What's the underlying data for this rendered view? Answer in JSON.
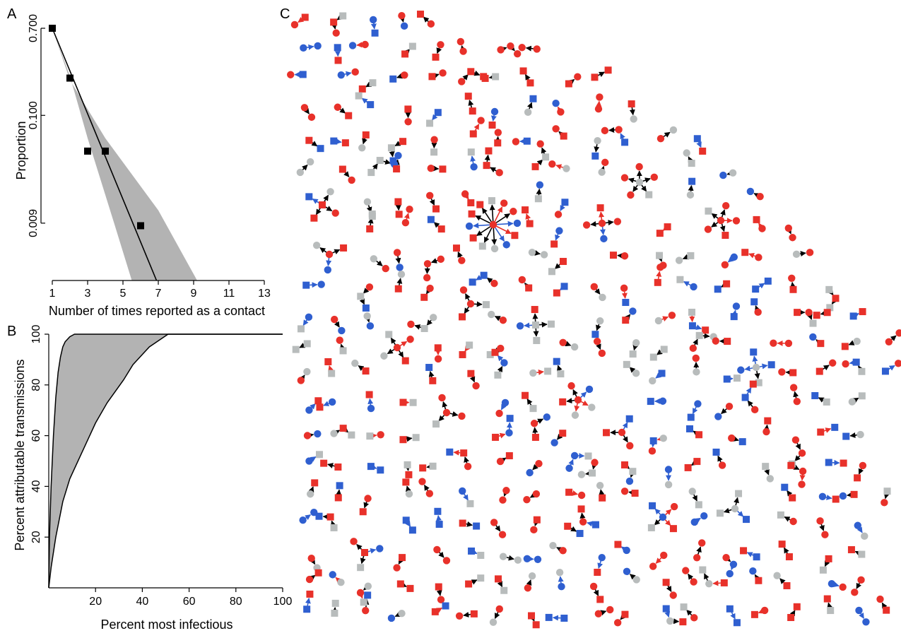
{
  "panels": {
    "a": "A",
    "b": "B",
    "c": "C"
  },
  "chart_data": [
    {
      "panel": "A",
      "type": "scatter",
      "xlabel": "Number of times reported as a contact",
      "ylabel": "Proportion",
      "x_ticks": [
        1,
        3,
        5,
        7,
        9,
        11,
        13
      ],
      "y_ticks": [
        0.009,
        0.1,
        0.7
      ],
      "y_tick_labels": [
        "0.009",
        "0.100",
        "0.700"
      ],
      "y_scale": "log",
      "xlim": [
        1,
        13
      ],
      "ylim": [
        0.0025,
        0.7
      ],
      "points": [
        {
          "x": 1,
          "y": 0.7
        },
        {
          "x": 2,
          "y": 0.23
        },
        {
          "x": 3,
          "y": 0.045
        },
        {
          "x": 4,
          "y": 0.045
        },
        {
          "x": 6,
          "y": 0.0085
        }
      ],
      "fit_line": [
        {
          "x": 1,
          "y": 0.7
        },
        {
          "x": 6.9,
          "y": 0.0025
        }
      ],
      "band_upper": [
        {
          "x": 1,
          "y": 0.7
        },
        {
          "x": 2,
          "y": 0.22
        },
        {
          "x": 4,
          "y": 0.06
        },
        {
          "x": 7,
          "y": 0.012
        },
        {
          "x": 9.2,
          "y": 0.0025
        }
      ],
      "band_lower": [
        {
          "x": 1,
          "y": 0.7
        },
        {
          "x": 2,
          "y": 0.24
        },
        {
          "x": 3,
          "y": 0.06
        },
        {
          "x": 4.5,
          "y": 0.009
        },
        {
          "x": 5.5,
          "y": 0.0025
        }
      ],
      "colors": {
        "points": "#000000",
        "band": "#b3b3b3",
        "line": "#000000"
      }
    },
    {
      "panel": "B",
      "type": "area",
      "xlabel": "Percent most infectious",
      "ylabel": "Percent attributable transmissions",
      "x_ticks": [
        20,
        40,
        60,
        80,
        100
      ],
      "y_ticks": [
        20,
        40,
        60,
        80,
        100
      ],
      "xlim": [
        0,
        100
      ],
      "ylim": [
        0,
        100
      ],
      "upper_curve": [
        [
          0,
          0
        ],
        [
          0.3,
          20
        ],
        [
          1,
          40
        ],
        [
          2,
          60
        ],
        [
          3,
          75
        ],
        [
          4,
          85
        ],
        [
          5,
          91
        ],
        [
          6,
          95
        ],
        [
          7,
          97
        ],
        [
          9,
          99
        ],
        [
          11,
          100
        ],
        [
          100,
          100
        ]
      ],
      "lower_curve": [
        [
          0,
          0
        ],
        [
          1,
          8
        ],
        [
          3,
          20
        ],
        [
          6,
          34
        ],
        [
          9,
          43
        ],
        [
          14,
          53
        ],
        [
          20,
          65
        ],
        [
          25,
          73
        ],
        [
          32,
          82
        ],
        [
          36,
          88
        ],
        [
          43,
          95
        ],
        [
          51,
          100
        ],
        [
          100,
          100
        ]
      ],
      "colors": {
        "band": "#b3b3b3",
        "line": "#000000"
      }
    },
    {
      "panel": "C",
      "type": "network",
      "legend": "none",
      "node_colors": {
        "red": "#e8312a",
        "blue": "#2f5fd0",
        "grey": "#b8bcbc"
      },
      "edge_colors": {
        "black": "#000000",
        "blue": "#2f5fd0",
        "red": "#e8312a"
      },
      "node_shapes": [
        "circle",
        "square"
      ],
      "hub_clusters": [
        {
          "center": "red",
          "leaves": 12
        },
        {
          "center": "red",
          "leaves": 4
        },
        {
          "center": "red",
          "leaves": 5
        },
        {
          "center": "red",
          "leaves": 4
        },
        {
          "center": "grey",
          "leaves": 5
        },
        {
          "center": "grey",
          "leaves": 4
        },
        {
          "center": "red",
          "leaves": 4
        },
        {
          "center": "red",
          "leaves": 5
        },
        {
          "center": "red",
          "leaves": 3
        },
        {
          "center": "blue",
          "leaves": 4
        },
        {
          "center": "grey",
          "leaves": 3
        },
        {
          "center": "red",
          "leaves": 3
        },
        {
          "center": "grey",
          "leaves": 4
        },
        {
          "center": "red",
          "leaves": 3
        },
        {
          "center": "red",
          "leaves": 3
        },
        {
          "center": "red",
          "leaves": 3
        }
      ]
    }
  ]
}
